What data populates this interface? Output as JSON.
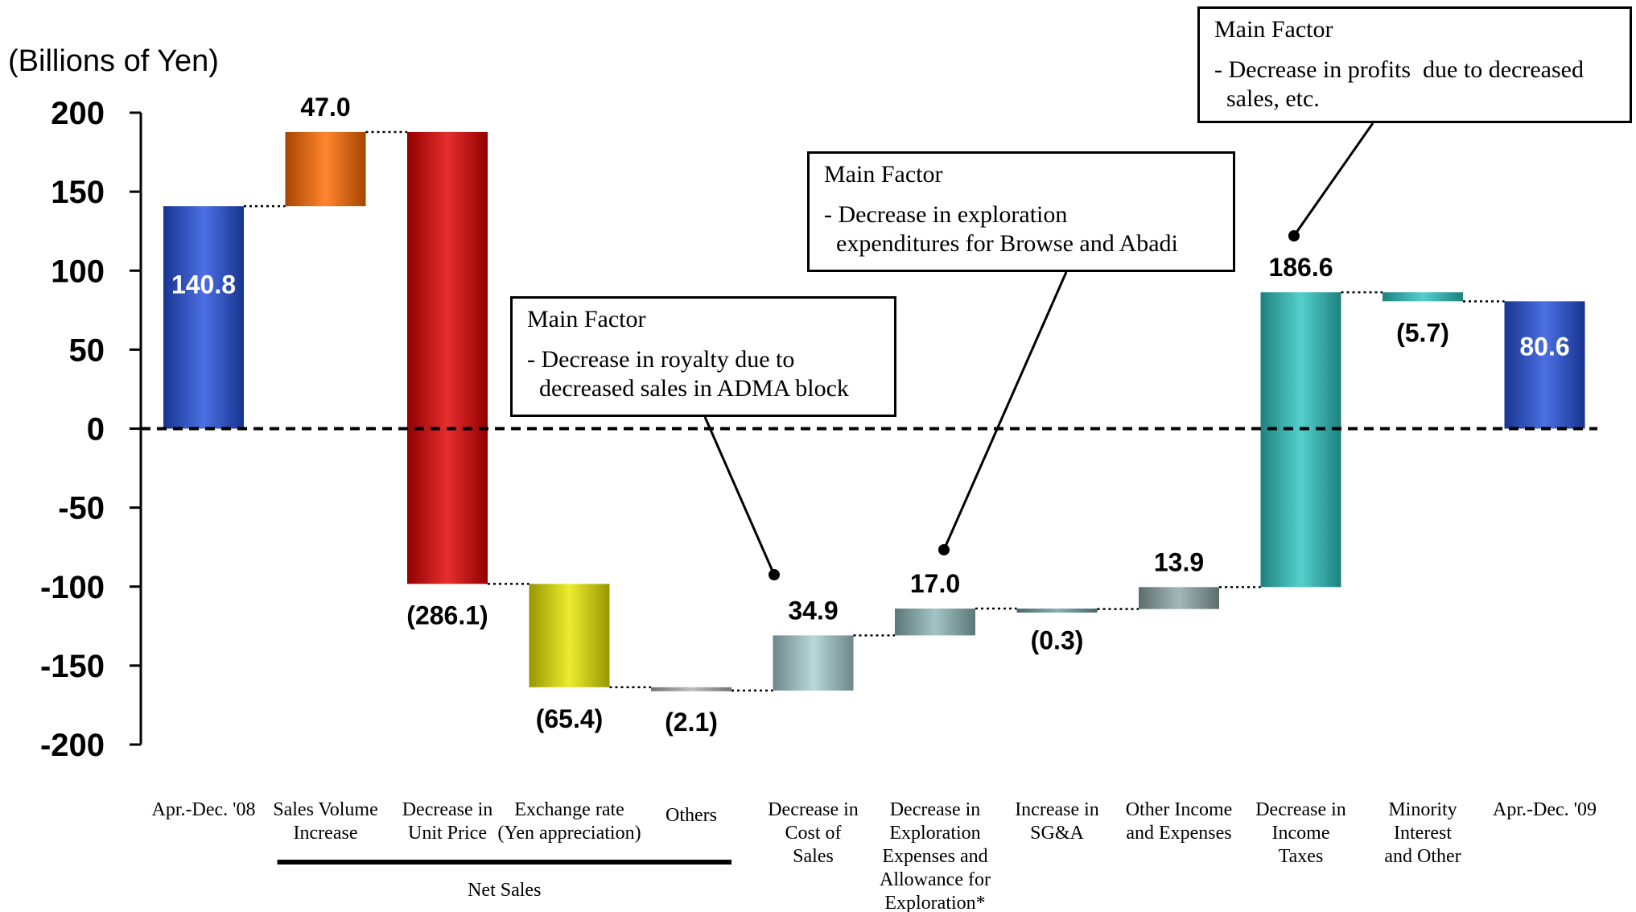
{
  "chart_data": {
    "type": "waterfall",
    "unit_label": "(Billions of Yen)",
    "ylim": [
      -200,
      200
    ],
    "yticks": [
      "200",
      "150",
      "100",
      "50",
      "0",
      "-50",
      "-100",
      "-150",
      "-200"
    ],
    "steps": [
      {
        "name": "apr-dec-08",
        "category": [
          "Apr.-Dec. '08"
        ],
        "start": 0,
        "end": 140.8,
        "value_label": "140.8",
        "color": "#2450dd",
        "label_inside": true
      },
      {
        "name": "sales-volume-increase",
        "category": [
          "Sales Volume",
          "Increase"
        ],
        "start": 140.8,
        "end": 187.8,
        "value_label": "47.0",
        "color": "#ff6a00",
        "label_inside": false
      },
      {
        "name": "decrease-unit-price",
        "category": [
          "Decrease in",
          "Unit Price"
        ],
        "start": 187.8,
        "end": -98.3,
        "value_label": "(286.1)",
        "color": "#e10000",
        "label_inside": false
      },
      {
        "name": "exchange-rate",
        "category": [
          "Exchange rate",
          "(Yen appreciation)"
        ],
        "start": -98.3,
        "end": -163.7,
        "value_label": "(65.4)",
        "color": "#e8e800",
        "label_inside": false
      },
      {
        "name": "others",
        "category": [
          "Others"
        ],
        "start": -163.7,
        "end": -165.8,
        "value_label": "(2.1)",
        "color": "#b0b0b0",
        "label_inside": false
      },
      {
        "name": "decrease-cost-of-sales",
        "category": [
          "Decrease in",
          "Cost of",
          "Sales"
        ],
        "start": -165.8,
        "end": -130.9,
        "value_label": "34.9",
        "color": "#a9cfd1",
        "label_inside": false
      },
      {
        "name": "decrease-exploration",
        "category": [
          "Decrease in",
          "Exploration",
          "Expenses and",
          "Allowance for",
          "Exploration*"
        ],
        "start": -130.9,
        "end": -113.9,
        "value_label": "17.0",
        "color": "#8fb7b9",
        "label_inside": false
      },
      {
        "name": "increase-sga",
        "category": [
          "Increase in",
          "SG&A"
        ],
        "start": -113.9,
        "end": -114.2,
        "value_label": "(0.3)",
        "color": "#6f9ea0",
        "label_inside": false
      },
      {
        "name": "other-income-expenses",
        "category": [
          "Other Income",
          "and Expenses"
        ],
        "start": -114.2,
        "end": -100.3,
        "value_label": "13.9",
        "color": "#8fa8a9",
        "label_inside": false
      },
      {
        "name": "decrease-income-taxes",
        "category": [
          "Decrease in",
          "Income",
          "Taxes"
        ],
        "start": -100.3,
        "end": 86.3,
        "value_label": "186.6",
        "color": "#2ec6c2",
        "label_inside": false
      },
      {
        "name": "minority-interest",
        "category": [
          "Minority",
          "Interest",
          "and Other"
        ],
        "start": 86.3,
        "end": 80.6,
        "value_label": "(5.7)",
        "color": "#2ec6c2",
        "label_inside": false
      },
      {
        "name": "apr-dec-09",
        "category": [
          "Apr.-Dec. '09"
        ],
        "start": 0,
        "end": 80.6,
        "value_label": "80.6",
        "color": "#2450dd",
        "label_inside": true
      }
    ],
    "group": {
      "label": "Net Sales",
      "from_step": 1,
      "to_step": 4
    },
    "gridlines": false,
    "zero_line": "dashed"
  },
  "callouts": [
    {
      "name": "callout-royalty",
      "title": "Main Factor",
      "lines": [
        "- Decrease in royalty due to",
        "  decreased sales in ADMA block"
      ]
    },
    {
      "name": "callout-exploration",
      "title": "Main Factor",
      "lines": [
        "- Decrease in exploration",
        "  expenditures for Browse and Abadi"
      ]
    },
    {
      "name": "callout-taxes",
      "title": "Main Factor",
      "lines": [
        "- Decrease in profits  due to decreased",
        "  sales, etc."
      ]
    }
  ]
}
